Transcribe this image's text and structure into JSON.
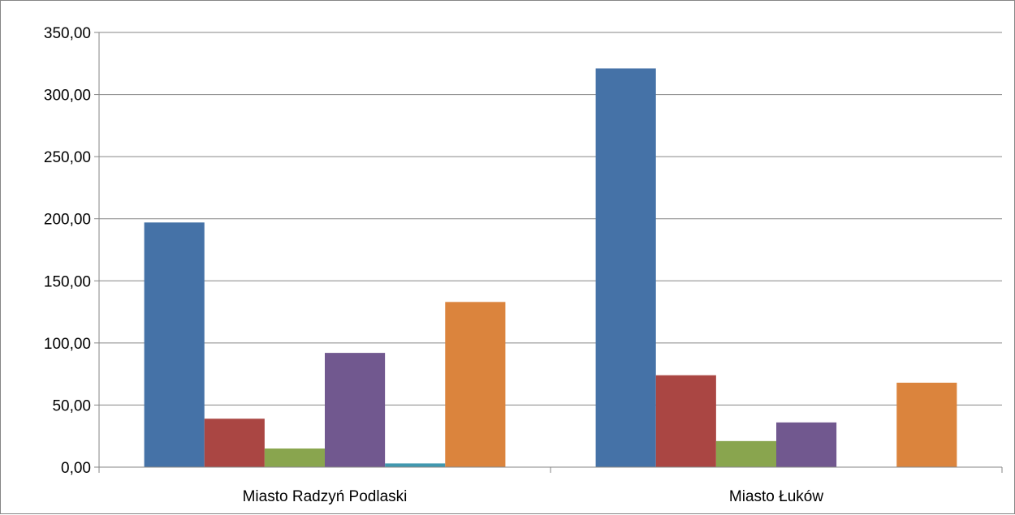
{
  "chart_data": {
    "type": "bar",
    "title": "",
    "xlabel": "",
    "ylabel": "",
    "ylim": [
      0,
      350
    ],
    "yticks": [
      0,
      50,
      100,
      150,
      200,
      250,
      300,
      350
    ],
    "ytick_labels": [
      "0,00",
      "50,00",
      "100,00",
      "150,00",
      "200,00",
      "250,00",
      "300,00",
      "350,00"
    ],
    "grid": true,
    "legend": "none",
    "categories": [
      "Miasto Radzyń Podlaski",
      "Miasto Łuków"
    ],
    "series": [
      {
        "color": "#4572A7",
        "values": [
          197,
          321
        ]
      },
      {
        "color": "#AA4643",
        "values": [
          39,
          74
        ]
      },
      {
        "color": "#89A54E",
        "values": [
          15,
          21
        ]
      },
      {
        "color": "#71588F",
        "values": [
          92,
          36
        ]
      },
      {
        "color": "#4198AF",
        "values": [
          3,
          0
        ]
      },
      {
        "color": "#DB843D",
        "values": [
          133,
          68
        ]
      }
    ]
  }
}
